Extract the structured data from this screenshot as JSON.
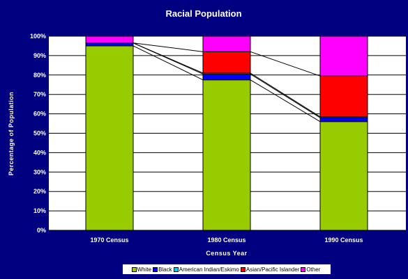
{
  "chart_data": {
    "type": "bar",
    "stacked": true,
    "title": "Racial Population",
    "xlabel": "Census Year",
    "ylabel": "Percentage of Population",
    "categories": [
      "1970 Census",
      "1980 Census",
      "1990 Census"
    ],
    "ylim": [
      0,
      100
    ],
    "yticks": [
      "0%",
      "10%",
      "20%",
      "30%",
      "40%",
      "50%",
      "60%",
      "70%",
      "80%",
      "90%",
      "100%"
    ],
    "grid": true,
    "legend_position": "bottom",
    "series": [
      {
        "name": "White",
        "color": "#99cc00",
        "values": [
          95,
          77.5,
          56
        ]
      },
      {
        "name": "Black",
        "color": "#0000ff",
        "values": [
          1.5,
          3,
          2
        ]
      },
      {
        "name": "American Indian/Eskimo",
        "color": "#00ccff",
        "values": [
          0,
          0.5,
          0.5
        ]
      },
      {
        "name": "Asian/Pacific Islander",
        "color": "#ff0000",
        "values": [
          0,
          11,
          21
        ]
      },
      {
        "name": "Other",
        "color": "#ff00ff",
        "values": [
          3.5,
          8,
          20.5
        ]
      }
    ]
  }
}
